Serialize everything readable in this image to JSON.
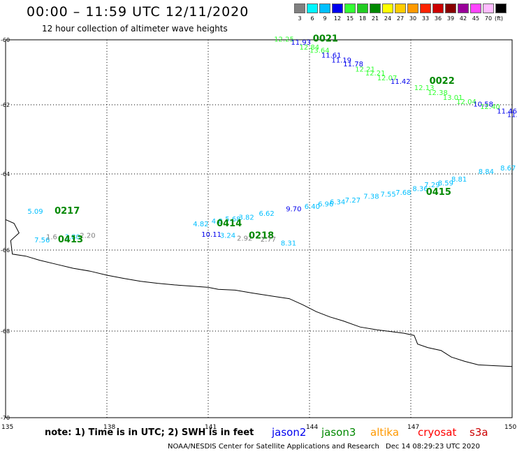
{
  "header": {
    "title": "00:00 – 11:59 UTC 12/11/2020",
    "subtitle": "12 hour collection of altimeter wave heights"
  },
  "legend": {
    "unit": "(ft)",
    "bins": [
      {
        "label": "3",
        "color": "#808080"
      },
      {
        "label": "6",
        "color": "#00f5ff"
      },
      {
        "label": "9",
        "color": "#00bfff"
      },
      {
        "label": "12",
        "color": "#0000ee"
      },
      {
        "label": "15",
        "color": "#33ff33"
      },
      {
        "label": "18",
        "color": "#22cc22"
      },
      {
        "label": "21",
        "color": "#008800"
      },
      {
        "label": "24",
        "color": "#ffff00"
      },
      {
        "label": "27",
        "color": "#ffcc00"
      },
      {
        "label": "30",
        "color": "#ff9900"
      },
      {
        "label": "33",
        "color": "#ff2200"
      },
      {
        "label": "36",
        "color": "#cc0000"
      },
      {
        "label": "39",
        "color": "#880000"
      },
      {
        "label": "42",
        "color": "#990099"
      },
      {
        "label": "45",
        "color": "#ff44ff"
      },
      {
        "label": "70",
        "color": "#ffbbff"
      },
      {
        "label": "",
        "color": "#000000"
      }
    ]
  },
  "map": {
    "lon_ticks": [
      {
        "lon": 135,
        "label": "135"
      },
      {
        "lon": 138,
        "label": "138"
      },
      {
        "lon": 141,
        "label": "141"
      },
      {
        "lon": 144,
        "label": "144"
      },
      {
        "lon": 147,
        "label": "147"
      },
      {
        "lon": 150,
        "label": "150"
      }
    ],
    "lat_ticks": [
      {
        "lat": -60,
        "label": "-60"
      },
      {
        "lat": -62,
        "label": "-62"
      },
      {
        "lat": -64,
        "label": "-64"
      },
      {
        "lat": -66,
        "label": "-66"
      },
      {
        "lat": -68,
        "label": "-68"
      },
      {
        "lat": -70,
        "label": "-70"
      }
    ],
    "coastline": [
      [
        135.0,
        -65.2
      ],
      [
        135.25,
        -65.3
      ],
      [
        135.4,
        -65.55
      ],
      [
        135.15,
        -65.75
      ],
      [
        135.2,
        -66.1
      ],
      [
        135.6,
        -66.15
      ],
      [
        136.0,
        -66.25
      ],
      [
        136.5,
        -66.35
      ],
      [
        137.0,
        -66.45
      ],
      [
        137.5,
        -66.52
      ],
      [
        138.0,
        -66.62
      ],
      [
        138.5,
        -66.7
      ],
      [
        139.0,
        -66.77
      ],
      [
        139.5,
        -66.82
      ],
      [
        140.0,
        -66.86
      ],
      [
        140.5,
        -66.89
      ],
      [
        141.0,
        -66.92
      ],
      [
        141.3,
        -66.97
      ],
      [
        141.8,
        -66.99
      ],
      [
        142.3,
        -67.06
      ],
      [
        142.6,
        -67.1
      ],
      [
        143.0,
        -67.15
      ],
      [
        143.4,
        -67.2
      ],
      [
        143.8,
        -67.35
      ],
      [
        144.2,
        -67.52
      ],
      [
        144.6,
        -67.65
      ],
      [
        145.0,
        -67.75
      ],
      [
        145.5,
        -67.9
      ],
      [
        146.0,
        -67.97
      ],
      [
        146.5,
        -68.02
      ],
      [
        146.8,
        -68.05
      ],
      [
        147.1,
        -68.1
      ],
      [
        147.2,
        -68.3
      ],
      [
        147.5,
        -68.38
      ],
      [
        147.9,
        -68.45
      ],
      [
        148.2,
        -68.6
      ],
      [
        148.6,
        -68.7
      ],
      [
        149.0,
        -68.78
      ],
      [
        149.5,
        -68.8
      ],
      [
        150.0,
        -68.82
      ]
    ],
    "wave_labels": [
      {
        "text": "0021",
        "lon": 144.1,
        "lat": -60.05,
        "color": "#008800",
        "bold": true,
        "big": true
      },
      {
        "text": "12.25",
        "lon": 142.95,
        "lat": -60.05,
        "color": "#33ff33"
      },
      {
        "text": "11.93",
        "lon": 143.45,
        "lat": -60.15,
        "color": "#0000ee"
      },
      {
        "text": "12.84",
        "lon": 143.7,
        "lat": -60.3,
        "color": "#33ff33"
      },
      {
        "text": "13.64",
        "lon": 144.0,
        "lat": -60.4,
        "color": "#33ff33"
      },
      {
        "text": "11.61",
        "lon": 144.35,
        "lat": -60.55,
        "color": "#0000ee"
      },
      {
        "text": "11.19",
        "lon": 144.65,
        "lat": -60.7,
        "color": "#0000ee"
      },
      {
        "text": "11.78",
        "lon": 145.0,
        "lat": -60.82,
        "color": "#0000ee"
      },
      {
        "text": "12.21",
        "lon": 145.35,
        "lat": -60.98,
        "color": "#33ff33"
      },
      {
        "text": "12.21",
        "lon": 145.65,
        "lat": -61.1,
        "color": "#33ff33"
      },
      {
        "text": "12.07",
        "lon": 146.0,
        "lat": -61.25,
        "color": "#33ff33"
      },
      {
        "text": "11.42",
        "lon": 146.4,
        "lat": -61.35,
        "color": "#0000ee"
      },
      {
        "text": "0022",
        "lon": 147.55,
        "lat": -61.35,
        "color": "#008800",
        "bold": true,
        "big": true
      },
      {
        "text": "12.13",
        "lon": 147.1,
        "lat": -61.55,
        "color": "#33ff33"
      },
      {
        "text": "12.38",
        "lon": 147.5,
        "lat": -61.7,
        "color": "#33ff33"
      },
      {
        "text": "13.01",
        "lon": 147.95,
        "lat": -61.85,
        "color": "#33ff33"
      },
      {
        "text": "12.04",
        "lon": 148.35,
        "lat": -61.98,
        "color": "#33ff33"
      },
      {
        "text": "10.58",
        "lon": 148.85,
        "lat": -62.05,
        "color": "#0000ee"
      },
      {
        "text": "12.40",
        "lon": 149.05,
        "lat": -62.12,
        "color": "#33ff33"
      },
      {
        "text": "11.46",
        "lon": 149.55,
        "lat": -62.25,
        "color": "#0000ee"
      },
      {
        "text": "11.3",
        "lon": 149.85,
        "lat": -62.35,
        "color": "#0000ee"
      },
      {
        "text": "8.84",
        "lon": 149.0,
        "lat": -64.0,
        "color": "#00bfff"
      },
      {
        "text": "8.67",
        "lon": 149.65,
        "lat": -63.9,
        "color": "#00bfff"
      },
      {
        "text": "8.81",
        "lon": 148.2,
        "lat": -64.2,
        "color": "#00bfff"
      },
      {
        "text": "8.59",
        "lon": 147.8,
        "lat": -64.3,
        "color": "#00bfff"
      },
      {
        "text": "7.29",
        "lon": 147.4,
        "lat": -64.35,
        "color": "#00bfff"
      },
      {
        "text": "8.36",
        "lon": 147.05,
        "lat": -64.45,
        "color": "#00bfff"
      },
      {
        "text": "0415",
        "lon": 147.45,
        "lat": -64.55,
        "color": "#008800",
        "bold": true,
        "big": true
      },
      {
        "text": "7.68",
        "lon": 146.55,
        "lat": -64.55,
        "color": "#00bfff"
      },
      {
        "text": "7.55",
        "lon": 146.1,
        "lat": -64.6,
        "color": "#00bfff"
      },
      {
        "text": "7.38",
        "lon": 145.6,
        "lat": -64.65,
        "color": "#00bfff"
      },
      {
        "text": "7.27",
        "lon": 145.05,
        "lat": -64.75,
        "color": "#00bfff"
      },
      {
        "text": "6.34",
        "lon": 144.6,
        "lat": -64.8,
        "color": "#00bfff"
      },
      {
        "text": "6.96",
        "lon": 144.25,
        "lat": -64.85,
        "color": "#00bfff"
      },
      {
        "text": "6.40",
        "lon": 143.85,
        "lat": -64.92,
        "color": "#00bfff"
      },
      {
        "text": "9.70",
        "lon": 143.3,
        "lat": -64.98,
        "color": "#0000ee"
      },
      {
        "text": "6.62",
        "lon": 142.5,
        "lat": -65.1,
        "color": "#00bfff"
      },
      {
        "text": "3.82",
        "lon": 141.9,
        "lat": -65.2,
        "color": "#00bfff"
      },
      {
        "text": "5.68",
        "lon": 141.5,
        "lat": -65.25,
        "color": "#00bfff"
      },
      {
        "text": "4.8",
        "lon": 141.1,
        "lat": -65.3,
        "color": "#00bfff"
      },
      {
        "text": "4.82",
        "lon": 140.55,
        "lat": -65.38,
        "color": "#00bfff"
      },
      {
        "text": "0414",
        "lon": 141.25,
        "lat": -65.38,
        "color": "#008800",
        "bold": true,
        "big": true
      },
      {
        "text": "10.11",
        "lon": 140.8,
        "lat": -65.65,
        "color": "#0000ee"
      },
      {
        "text": "3.24",
        "lon": 141.35,
        "lat": -65.68,
        "color": "#00bfff"
      },
      {
        "text": "2.92",
        "lon": 141.85,
        "lat": -65.75,
        "color": "#808080"
      },
      {
        "text": "0218",
        "lon": 142.2,
        "lat": -65.7,
        "color": "#008800",
        "bold": true,
        "big": true
      },
      {
        "text": "2.77",
        "lon": 142.55,
        "lat": -65.78,
        "color": "#808080"
      },
      {
        "text": "8.31",
        "lon": 143.15,
        "lat": -65.88,
        "color": "#00bfff"
      },
      {
        "text": "5.09",
        "lon": 135.65,
        "lat": -65.05,
        "color": "#00bfff"
      },
      {
        "text": "0217",
        "lon": 136.45,
        "lat": -65.05,
        "color": "#008800",
        "bold": true,
        "big": true
      },
      {
        "text": "7.56",
        "lon": 135.85,
        "lat": -65.8,
        "color": "#00bfff"
      },
      {
        "text": "1.6",
        "lon": 136.2,
        "lat": -65.72,
        "color": "#808080"
      },
      {
        "text": "3.80",
        "lon": 136.75,
        "lat": -65.72,
        "color": "#00bfff"
      },
      {
        "text": "2.20",
        "lon": 137.2,
        "lat": -65.68,
        "color": "#808080"
      },
      {
        "text": "0413",
        "lon": 136.55,
        "lat": -65.8,
        "color": "#008800",
        "bold": true,
        "big": true
      }
    ]
  },
  "footer": {
    "note": "note:  1) Time is in UTC;  2) SWH is in feet",
    "satellites": [
      {
        "name": "jason2",
        "color": "#0000ee"
      },
      {
        "name": "jason3",
        "color": "#008800"
      },
      {
        "name": "altika",
        "color": "#ff9900"
      },
      {
        "name": "cryosat",
        "color": "#ff0000"
      },
      {
        "name": "s3a",
        "color": "#cc0000"
      }
    ],
    "credit": "NOAA/NESDIS Center for Satellite Applications and Research",
    "timestamp": "Dec 14 08:29:23 UTC 2020"
  }
}
